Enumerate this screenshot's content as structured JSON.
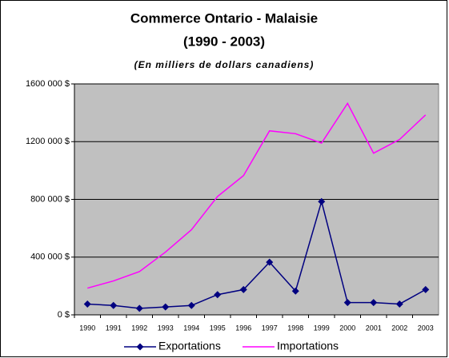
{
  "chart_data": {
    "type": "line",
    "title": "Commerce Ontario - Malaisie",
    "subtitle": "(1990 - 2003)",
    "annotation": "(En milliers de dollars canadiens)",
    "categories": [
      "1990",
      "1991",
      "1992",
      "1993",
      "1994",
      "1995",
      "1996",
      "1997",
      "1998",
      "1999",
      "2000",
      "2001",
      "2002",
      "2003"
    ],
    "series": [
      {
        "name": "Exportations",
        "color": "#000080",
        "marker": "diamond",
        "values": [
          75000,
          65000,
          45000,
          55000,
          65000,
          140000,
          175000,
          365000,
          165000,
          785000,
          85000,
          85000,
          75000,
          175000
        ]
      },
      {
        "name": "Importations",
        "color": "#ff00ff",
        "values": [
          185000,
          235000,
          300000,
          435000,
          590000,
          820000,
          965000,
          1275000,
          1255000,
          1190000,
          1465000,
          1120000,
          1215000,
          1385000
        ]
      }
    ],
    "ylim": [
      0,
      1600000
    ],
    "yticks": [
      {
        "value": 0,
        "label": "0 $"
      },
      {
        "value": 400000,
        "label": "400 000 $"
      },
      {
        "value": 800000,
        "label": "800 000 $"
      },
      {
        "value": 1200000,
        "label": "1200 000 $"
      },
      {
        "value": 1600000,
        "label": "1600 000 $"
      }
    ],
    "grid": true,
    "legend": "bottom"
  }
}
